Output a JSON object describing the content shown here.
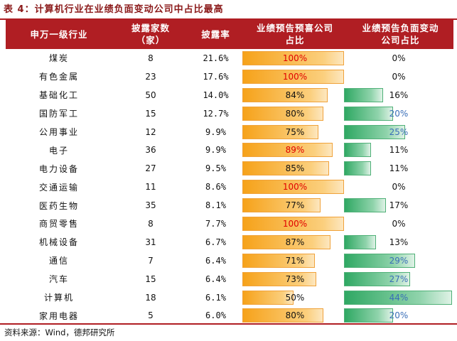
{
  "title": "表 4：计算机行业在业绩负面变动公司中占比最高",
  "headers": [
    "申万一级行业",
    "披露家数\n（家）",
    "披露率",
    "业绩预告预喜公司\n占比",
    "业绩预告负面变动\n公司占比"
  ],
  "rows": [
    {
      "industry": "煤炭",
      "count": "8",
      "rate": "21.6%",
      "pos": "100%",
      "pos_value": 100,
      "pos_red": true,
      "neg": "0%",
      "neg_value": 0,
      "neg_blue": false
    },
    {
      "industry": "有色金属",
      "count": "23",
      "rate": "17.6%",
      "pos": "100%",
      "pos_value": 100,
      "pos_red": true,
      "neg": "0%",
      "neg_value": 0,
      "neg_blue": false
    },
    {
      "industry": "基础化工",
      "count": "50",
      "rate": "14.0%",
      "pos": "84%",
      "pos_value": 84,
      "pos_red": false,
      "neg": "16%",
      "neg_value": 16,
      "neg_blue": false
    },
    {
      "industry": "国防军工",
      "count": "15",
      "rate": "12.7%",
      "pos": "80%",
      "pos_value": 80,
      "pos_red": false,
      "neg": "20%",
      "neg_value": 20,
      "neg_blue": true
    },
    {
      "industry": "公用事业",
      "count": "12",
      "rate": "9.9%",
      "pos": "75%",
      "pos_value": 75,
      "pos_red": false,
      "neg": "25%",
      "neg_value": 25,
      "neg_blue": true
    },
    {
      "industry": "电子",
      "count": "36",
      "rate": "9.9%",
      "pos": "89%",
      "pos_value": 89,
      "pos_red": true,
      "neg": "11%",
      "neg_value": 11,
      "neg_blue": false
    },
    {
      "industry": "电力设备",
      "count": "27",
      "rate": "9.5%",
      "pos": "85%",
      "pos_value": 85,
      "pos_red": false,
      "neg": "11%",
      "neg_value": 11,
      "neg_blue": false
    },
    {
      "industry": "交通运输",
      "count": "11",
      "rate": "8.6%",
      "pos": "100%",
      "pos_value": 100,
      "pos_red": true,
      "neg": "0%",
      "neg_value": 0,
      "neg_blue": false
    },
    {
      "industry": "医药生物",
      "count": "35",
      "rate": "8.1%",
      "pos": "77%",
      "pos_value": 77,
      "pos_red": false,
      "neg": "17%",
      "neg_value": 17,
      "neg_blue": false
    },
    {
      "industry": "商贸零售",
      "count": "8",
      "rate": "7.7%",
      "pos": "100%",
      "pos_value": 100,
      "pos_red": true,
      "neg": "0%",
      "neg_value": 0,
      "neg_blue": false
    },
    {
      "industry": "机械设备",
      "count": "31",
      "rate": "6.7%",
      "pos": "87%",
      "pos_value": 87,
      "pos_red": false,
      "neg": "13%",
      "neg_value": 13,
      "neg_blue": false
    },
    {
      "industry": "通信",
      "count": "7",
      "rate": "6.4%",
      "pos": "71%",
      "pos_value": 71,
      "pos_red": false,
      "neg": "29%",
      "neg_value": 29,
      "neg_blue": true
    },
    {
      "industry": "汽车",
      "count": "15",
      "rate": "6.4%",
      "pos": "73%",
      "pos_value": 73,
      "pos_red": false,
      "neg": "27%",
      "neg_value": 27,
      "neg_blue": true
    },
    {
      "industry": "计算机",
      "count": "18",
      "rate": "6.1%",
      "pos": "50%",
      "pos_value": 50,
      "pos_red": false,
      "neg": "44%",
      "neg_value": 44,
      "neg_blue": true
    },
    {
      "industry": "家用电器",
      "count": "5",
      "rate": "6.0%",
      "pos": "80%",
      "pos_value": 80,
      "pos_red": false,
      "neg": "20%",
      "neg_value": 20,
      "neg_blue": true
    }
  ],
  "source": "资料来源：Wind，德邦研究所",
  "colors": {
    "accent": "#b01e23",
    "positive_bar": "#f6a21a",
    "negative_bar": "#2fa863",
    "highlight_red": "#e00000",
    "highlight_blue": "#3a6fb8"
  }
}
